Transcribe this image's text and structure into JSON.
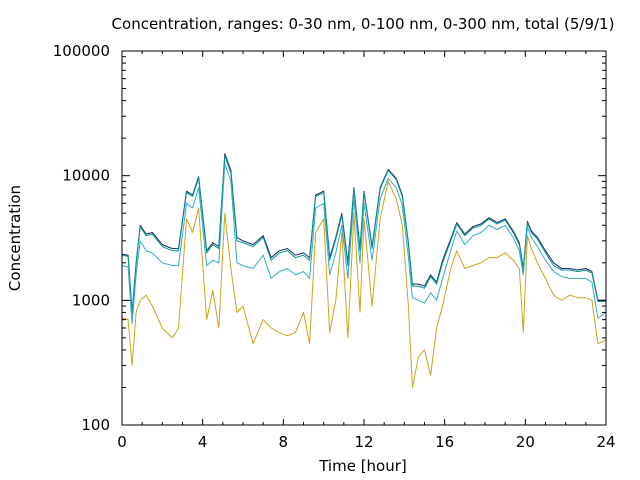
{
  "chart_data": {
    "type": "line",
    "title": "Concentration, ranges: 0-30 nm, 0-100 nm, 0-300 nm, total (5/9/1)",
    "xlabel": "Time [hour]",
    "ylabel": "Concentration",
    "xlim": [
      0,
      24
    ],
    "ylim": [
      100,
      100000
    ],
    "yscale": "log",
    "grid": false,
    "legend": "none",
    "x_ticks": [
      0,
      4,
      8,
      12,
      16,
      20,
      24
    ],
    "x_tick_labels": [
      "0",
      "4",
      "8",
      "12",
      "16",
      "20",
      "24"
    ],
    "y_ticks": [
      100,
      1000,
      10000,
      100000
    ],
    "y_tick_labels": [
      "100",
      "1000",
      "10000",
      "100000"
    ],
    "series": [
      {
        "color": "#1a2a6c",
        "x": [
          0,
          0.3,
          0.5,
          0.7,
          0.9,
          1.2,
          1.5,
          2,
          2.5,
          2.8,
          3.2,
          3.5,
          3.8,
          4.2,
          4.5,
          4.8,
          5.1,
          5.4,
          5.7,
          6.0,
          6.5,
          7.0,
          7.4,
          7.8,
          8.2,
          8.6,
          9.0,
          9.3,
          9.6,
          10.0,
          10.3,
          10.6,
          10.9,
          11.2,
          11.5,
          11.8,
          12.0,
          12.4,
          12.8,
          13.2,
          13.6,
          13.9,
          14.2,
          14.4,
          14.7,
          15.0,
          15.3,
          15.6,
          15.9,
          16.3,
          16.6,
          17.0,
          17.4,
          17.8,
          18.2,
          18.6,
          19.0,
          19.4,
          19.7,
          19.9,
          20.1,
          20.3,
          20.6,
          21.0,
          21.4,
          21.8,
          22.2,
          22.6,
          23.0,
          23.3,
          23.6,
          24.0
        ],
        "y": [
          2350,
          2300,
          800,
          2000,
          4000,
          3400,
          3500,
          2800,
          2600,
          2600,
          7500,
          7000,
          9800,
          2500,
          2900,
          2700,
          15000,
          11000,
          3200,
          3000,
          2800,
          3300,
          2200,
          2500,
          2600,
          2300,
          2400,
          2200,
          7000,
          7500,
          2200,
          3200,
          5000,
          2000,
          8000,
          2600,
          7500,
          2700,
          8000,
          11200,
          9500,
          7000,
          2900,
          1350,
          1350,
          1300,
          1600,
          1400,
          2100,
          3100,
          4200,
          3400,
          3900,
          4100,
          4600,
          4200,
          4500,
          3600,
          2900,
          1800,
          4300,
          3600,
          3200,
          2500,
          2000,
          1800,
          1800,
          1750,
          1800,
          1700,
          1000,
          1000
        ]
      },
      {
        "color": "#009988",
        "x": [
          0,
          0.3,
          0.5,
          0.7,
          0.9,
          1.2,
          1.5,
          2,
          2.5,
          2.8,
          3.2,
          3.5,
          3.8,
          4.2,
          4.5,
          4.8,
          5.1,
          5.4,
          5.7,
          6.0,
          6.5,
          7.0,
          7.4,
          7.8,
          8.2,
          8.6,
          9.0,
          9.3,
          9.6,
          10.0,
          10.3,
          10.6,
          10.9,
          11.2,
          11.5,
          11.8,
          12.0,
          12.4,
          12.8,
          13.2,
          13.6,
          13.9,
          14.2,
          14.4,
          14.7,
          15.0,
          15.3,
          15.6,
          15.9,
          16.3,
          16.6,
          17.0,
          17.4,
          17.8,
          18.2,
          18.6,
          19.0,
          19.4,
          19.7,
          19.9,
          20.1,
          20.3,
          20.6,
          21.0,
          21.4,
          21.8,
          22.2,
          22.6,
          23.0,
          23.3,
          23.6,
          24.0
        ],
        "y": [
          2300,
          2250,
          780,
          1950,
          3900,
          3300,
          3400,
          2700,
          2500,
          2500,
          7300,
          6800,
          9500,
          2400,
          2800,
          2600,
          14500,
          10500,
          3000,
          2900,
          2700,
          3200,
          2100,
          2400,
          2500,
          2200,
          2300,
          2100,
          6800,
          7300,
          2100,
          3100,
          4800,
          1900,
          7800,
          2500,
          7300,
          2600,
          7800,
          11000,
          9300,
          6800,
          2800,
          1300,
          1300,
          1250,
          1550,
          1350,
          2000,
          3000,
          4100,
          3300,
          3800,
          4000,
          4500,
          4100,
          4400,
          3500,
          2800,
          1750,
          4200,
          3500,
          3100,
          2400,
          1900,
          1750,
          1750,
          1700,
          1750,
          1650,
          980,
          980
        ]
      },
      {
        "color": "#33aacc",
        "x": [
          0,
          0.3,
          0.5,
          0.7,
          0.9,
          1.2,
          1.5,
          2,
          2.5,
          2.8,
          3.2,
          3.5,
          3.8,
          4.2,
          4.5,
          4.8,
          5.1,
          5.4,
          5.7,
          6.0,
          6.5,
          7.0,
          7.4,
          7.8,
          8.2,
          8.6,
          9.0,
          9.3,
          9.6,
          10.0,
          10.3,
          10.6,
          10.9,
          11.2,
          11.5,
          11.8,
          12.0,
          12.4,
          12.8,
          13.2,
          13.6,
          13.9,
          14.2,
          14.4,
          14.7,
          15.0,
          15.3,
          15.6,
          15.9,
          16.3,
          16.6,
          17.0,
          17.4,
          17.8,
          18.2,
          18.6,
          19.0,
          19.4,
          19.7,
          19.9,
          20.1,
          20.3,
          20.6,
          21.0,
          21.4,
          21.8,
          22.2,
          22.6,
          23.0,
          23.3,
          23.6,
          24.0
        ],
        "y": [
          1900,
          1850,
          650,
          1600,
          3000,
          2500,
          2400,
          2000,
          1900,
          1900,
          6000,
          5500,
          8000,
          1900,
          2100,
          2000,
          12500,
          9000,
          2000,
          1900,
          1800,
          2300,
          1500,
          1700,
          1800,
          1600,
          1700,
          1500,
          5500,
          6000,
          1600,
          2400,
          4000,
          1500,
          6500,
          2000,
          6000,
          2100,
          6500,
          9500,
          8000,
          5800,
          2200,
          1050,
          1000,
          950,
          1150,
          1000,
          1500,
          2500,
          3600,
          2800,
          3300,
          3500,
          4000,
          3700,
          4000,
          3200,
          2500,
          1600,
          3900,
          3200,
          2700,
          2100,
          1700,
          1550,
          1500,
          1500,
          1500,
          1400,
          720,
          800
        ]
      },
      {
        "color": "#d4a017",
        "x": [
          0,
          0.3,
          0.5,
          0.7,
          0.9,
          1.2,
          1.5,
          2,
          2.5,
          2.8,
          3.2,
          3.5,
          3.8,
          4.2,
          4.5,
          4.8,
          5.1,
          5.4,
          5.7,
          6.0,
          6.5,
          7.0,
          7.4,
          7.8,
          8.2,
          8.6,
          9.0,
          9.3,
          9.6,
          10.0,
          10.3,
          10.6,
          10.9,
          11.2,
          11.5,
          11.8,
          12.0,
          12.4,
          12.8,
          13.2,
          13.6,
          13.9,
          14.2,
          14.4,
          14.7,
          15.0,
          15.3,
          15.6,
          15.9,
          16.3,
          16.6,
          17.0,
          17.4,
          17.8,
          18.2,
          18.6,
          19.0,
          19.4,
          19.7,
          19.9,
          20.1,
          20.3,
          20.6,
          21.0,
          21.4,
          21.8,
          22.2,
          22.6,
          23.0,
          23.3,
          23.6,
          24.0
        ],
        "y": [
          720,
          700,
          300,
          800,
          1000,
          1100,
          900,
          600,
          500,
          600,
          4500,
          3500,
          5500,
          700,
          1200,
          600,
          5000,
          1800,
          800,
          900,
          450,
          700,
          600,
          550,
          520,
          550,
          800,
          450,
          3500,
          4500,
          550,
          1000,
          3500,
          500,
          5000,
          800,
          4500,
          900,
          4500,
          9000,
          6500,
          4000,
          900,
          200,
          350,
          400,
          250,
          600,
          900,
          1800,
          2500,
          1800,
          1900,
          2000,
          2200,
          2200,
          2400,
          2100,
          1800,
          550,
          3300,
          2600,
          2000,
          1500,
          1100,
          1000,
          1100,
          1050,
          1050,
          1000,
          450,
          480
        ]
      }
    ]
  }
}
